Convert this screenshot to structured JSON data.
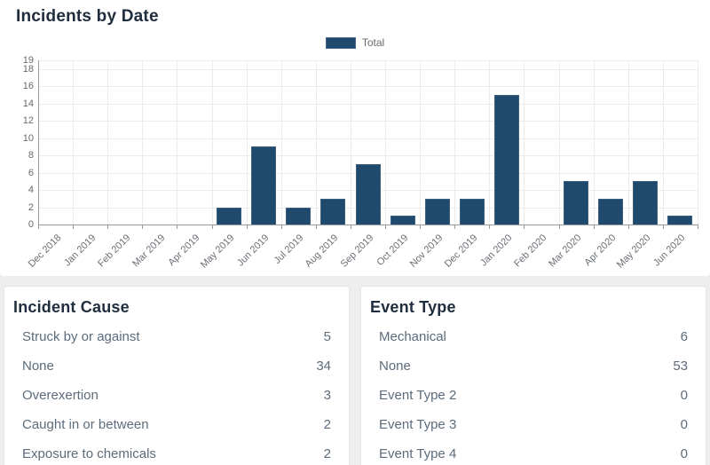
{
  "chart_panel": {
    "title": "Incidents by Date",
    "legend": {
      "label": "Total",
      "swatch_color": "#1f4a6e"
    }
  },
  "chart_data": {
    "type": "bar",
    "title": "Incidents by Date",
    "series": [
      {
        "name": "Total",
        "values": [
          0,
          0,
          0,
          0,
          0,
          2,
          9,
          2,
          3,
          7,
          1,
          3,
          3,
          15,
          0,
          5,
          3,
          5,
          1
        ]
      }
    ],
    "categories": [
      "Dec 2018",
      "Jan 2019",
      "Feb 2019",
      "Mar 2019",
      "Apr 2019",
      "May 2019",
      "Jun 2019",
      "Jul 2019",
      "Aug 2019",
      "Sep 2019",
      "Oct 2019",
      "Nov 2019",
      "Dec 2019",
      "Jan 2020",
      "Feb 2020",
      "Mar 2020",
      "Apr 2020",
      "May 2020",
      "Jun 2020"
    ],
    "y_ticks": [
      0,
      2,
      4,
      6,
      8,
      10,
      12,
      14,
      16,
      18,
      19
    ],
    "ylim": [
      0,
      19
    ],
    "xlabel": "",
    "ylabel": "",
    "bar_color": "#1f4a6e",
    "grid": true,
    "legend_position": "top-center"
  },
  "tables": [
    {
      "title": "Incident Cause",
      "rows": [
        {
          "label": "Struck by or against",
          "value": "5"
        },
        {
          "label": "None",
          "value": "34"
        },
        {
          "label": "Overexertion",
          "value": "3"
        },
        {
          "label": "Caught in or between",
          "value": "2"
        },
        {
          "label": "Exposure to chemicals",
          "value": "2"
        }
      ]
    },
    {
      "title": "Event Type",
      "rows": [
        {
          "label": "Mechanical",
          "value": "6"
        },
        {
          "label": "None",
          "value": "53"
        },
        {
          "label": "Event Type 2",
          "value": "0"
        },
        {
          "label": "Event Type 3",
          "value": "0"
        },
        {
          "label": "Event Type 4",
          "value": "0"
        }
      ]
    }
  ],
  "colors": {
    "bar": "#1f4a6e",
    "heading_text": "#1f2d3d",
    "row_text": "#5c6c7c",
    "gridline": "#ececec",
    "axis": "#9a9a9a"
  }
}
